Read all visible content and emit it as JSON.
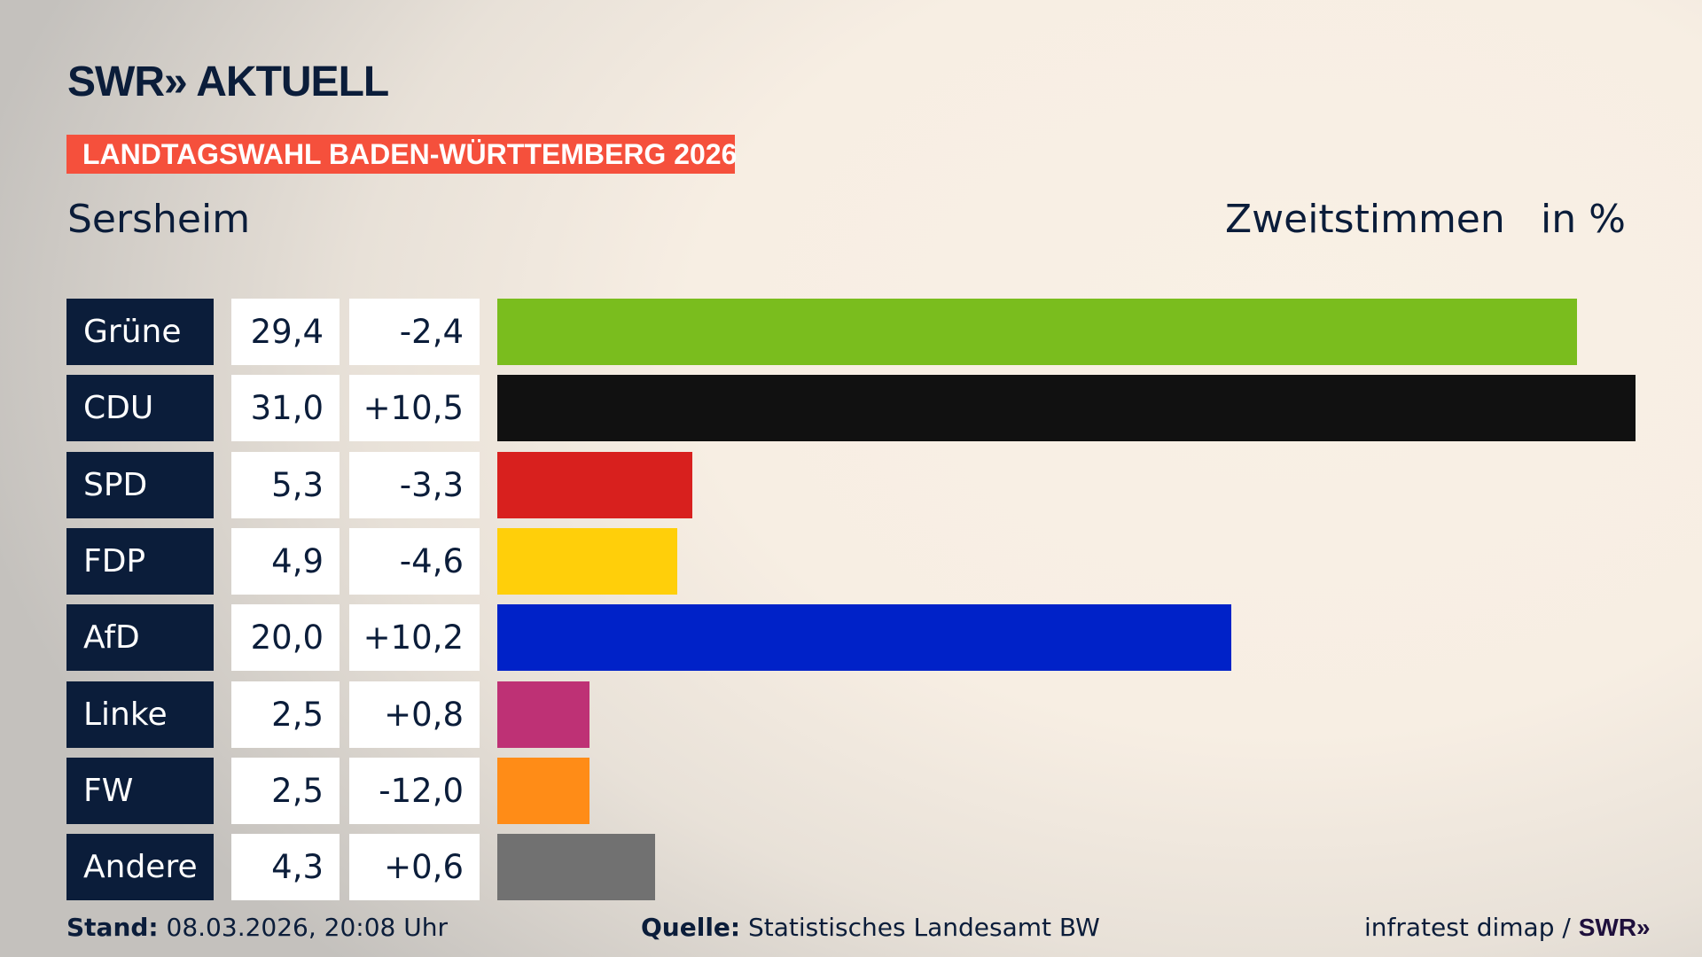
{
  "header": {
    "logo": "SWR» AKTUELL",
    "banner": "LANDTAGSWAHL BADEN-WÜRTTEMBERG 2026",
    "place": "Sersheim",
    "metric": "Zweitstimmen",
    "unit": "in %"
  },
  "chart_data": {
    "type": "bar",
    "orientation": "horizontal",
    "categories": [
      "Grüne",
      "CDU",
      "SPD",
      "FDP",
      "AfD",
      "Linke",
      "FW",
      "Andere"
    ],
    "values": [
      29.4,
      31.0,
      5.3,
      4.9,
      20.0,
      2.5,
      2.5,
      4.3
    ],
    "value_labels": [
      "29,4",
      "31,0",
      "5,3",
      "4,9",
      "20,0",
      "2,5",
      "2,5",
      "4,3"
    ],
    "change_labels": [
      "-2,4",
      "+10,5",
      "-3,3",
      "-4,6",
      "+10,2",
      "+0,8",
      "-12,0",
      "+0,6"
    ],
    "colors": [
      "#7abd1e",
      "#111111",
      "#d8201e",
      "#ffcf0a",
      "#0022c8",
      "#be3175",
      "#ff8c17",
      "#717171"
    ],
    "xlim": [
      0,
      31.0
    ]
  },
  "footer": {
    "stand_label": "Stand:",
    "stand_value": "08.03.2026, 20:08 Uhr",
    "source_label": "Quelle:",
    "source_value": "Statistisches Landesamt BW",
    "credit": "infratest dimap / ",
    "credit_logo": "SWR»"
  }
}
